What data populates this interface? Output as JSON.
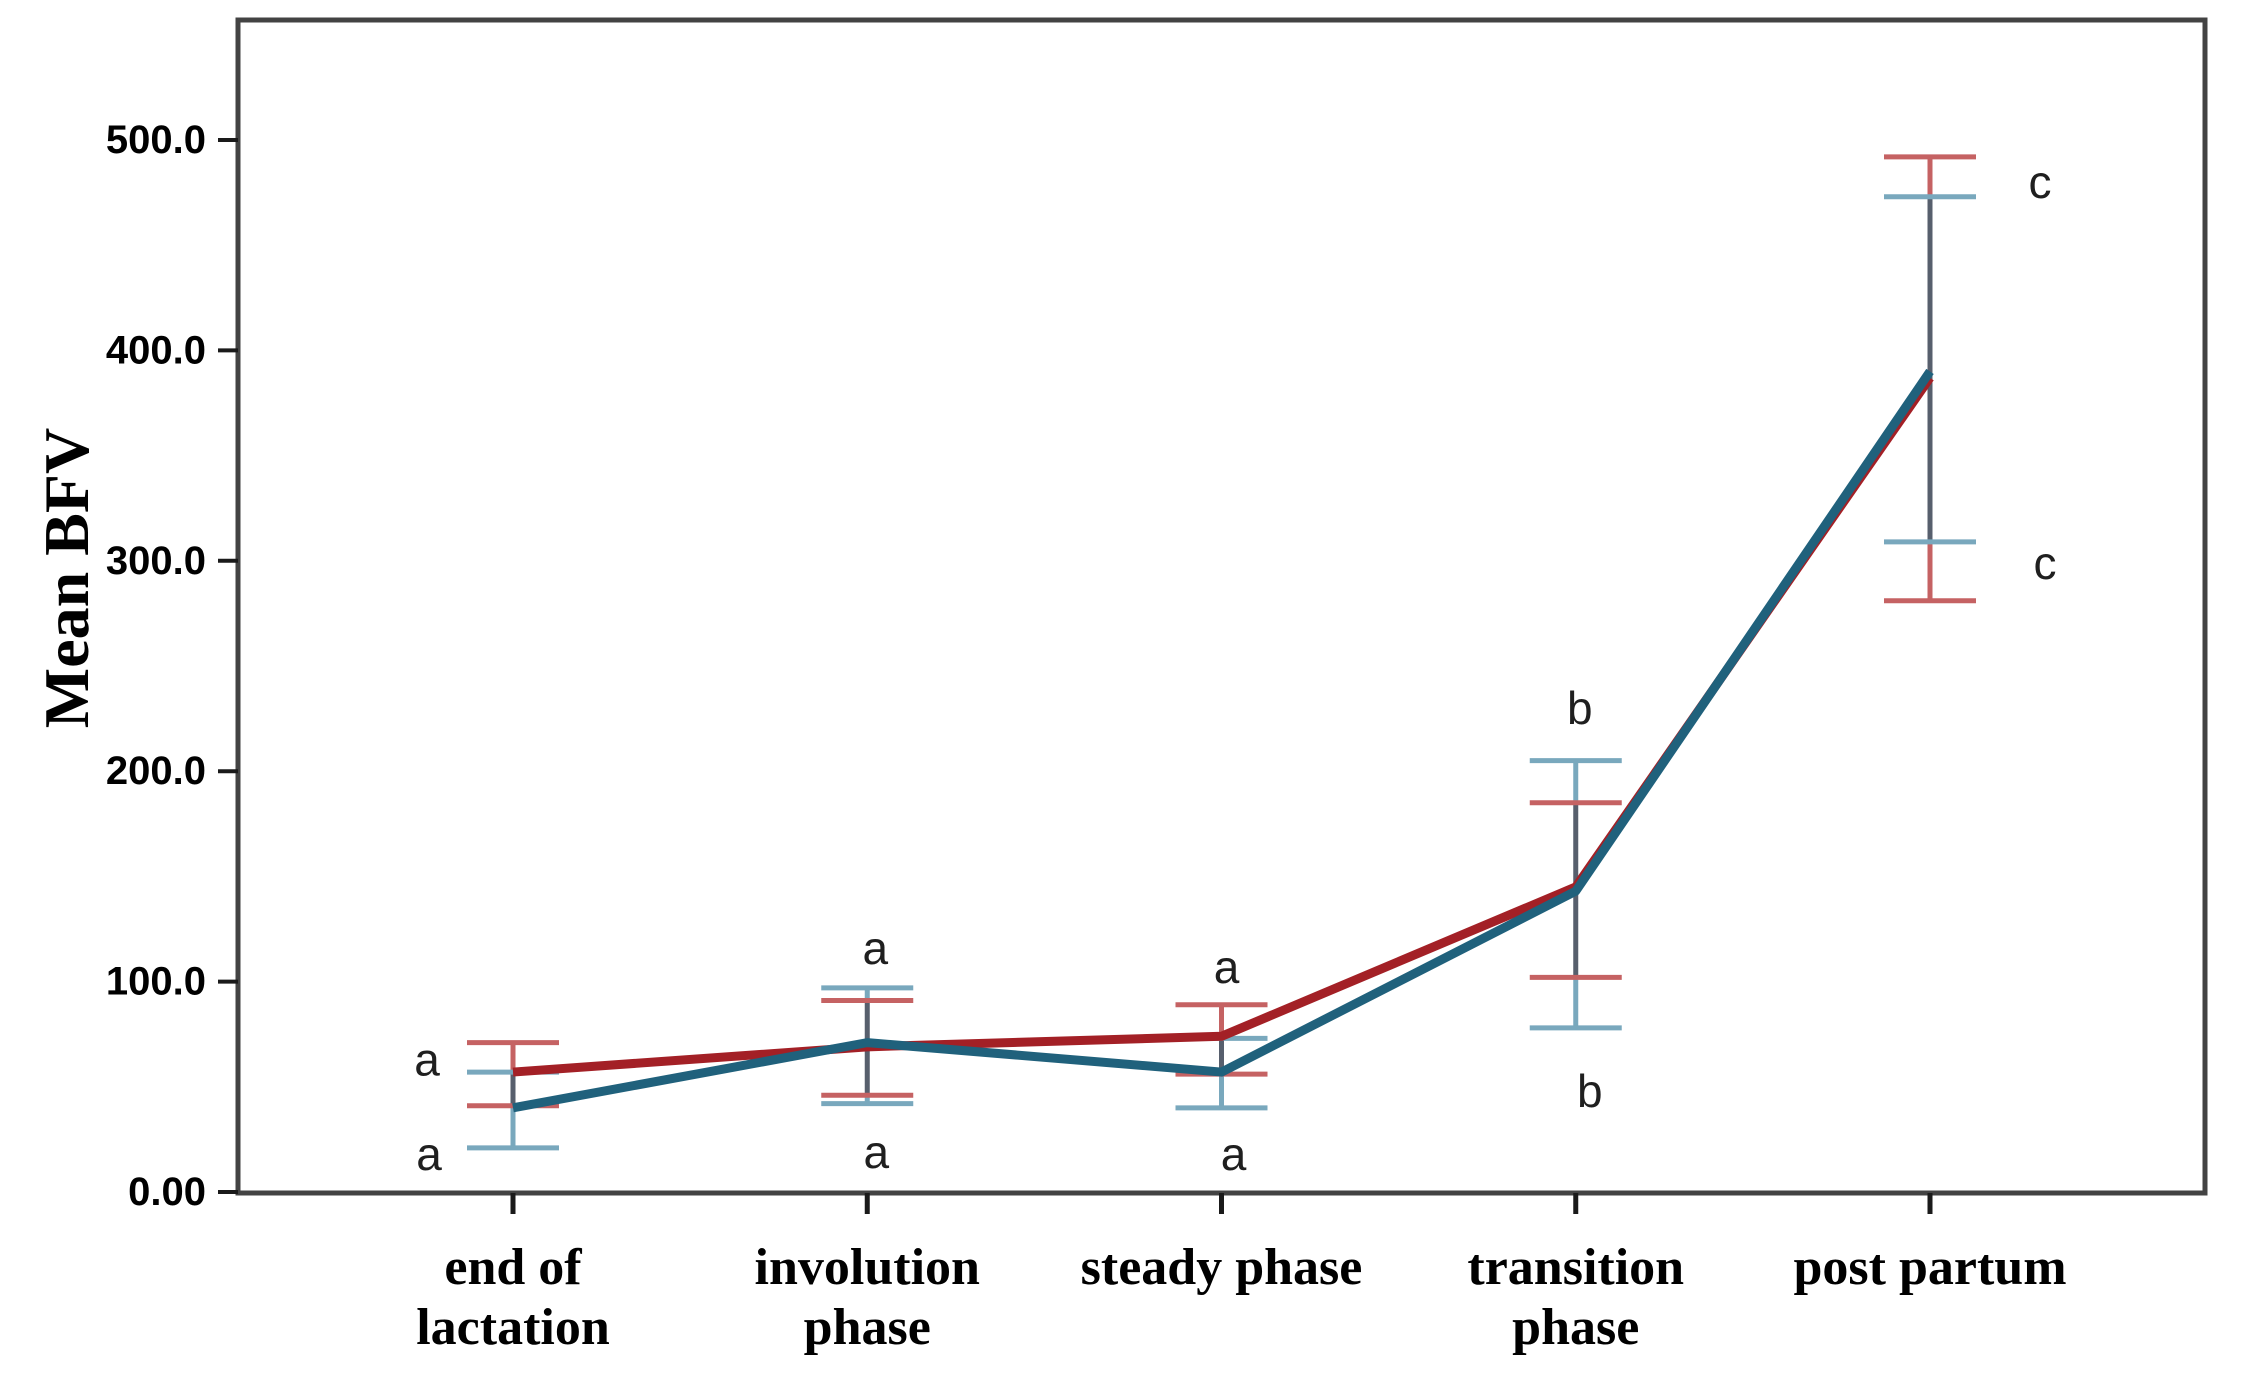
{
  "chart_data": {
    "type": "line",
    "title": "",
    "ylabel": "Mean BFV",
    "xlabel": "",
    "ylim": [
      0,
      557
    ],
    "grid": false,
    "legend": {
      "visible": false
    },
    "categories": [
      "end of lactation",
      "involution phase",
      "steady phase",
      "transition phase",
      "post partum"
    ],
    "category_label_lines": [
      [
        "end of",
        "lactation"
      ],
      [
        "involution",
        "phase"
      ],
      [
        "steady phase"
      ],
      [
        "transition",
        "phase"
      ],
      [
        "post partum"
      ]
    ],
    "y_ticks": [
      {
        "value": 0,
        "label": "0.00"
      },
      {
        "value": 100,
        "label": "100.0"
      },
      {
        "value": 200,
        "label": "200.0"
      },
      {
        "value": 300,
        "label": "300.0"
      },
      {
        "value": 400,
        "label": "400.0"
      },
      {
        "value": 500,
        "label": "500.0"
      }
    ],
    "series": [
      {
        "name": "red-series",
        "color": "#A32026",
        "error_color": "#C56263",
        "means": [
          57,
          69,
          74,
          145,
          387
        ],
        "ci_upper": [
          71,
          91,
          89,
          185,
          492
        ],
        "ci_lower": [
          41,
          46,
          56,
          102,
          281
        ]
      },
      {
        "name": "teal-series",
        "color": "#20617C",
        "error_color": "#79A8BD",
        "means": [
          40,
          71,
          57,
          143,
          390
        ],
        "ci_upper": [
          57,
          97,
          73,
          205,
          473
        ],
        "ci_lower": [
          21,
          42,
          40,
          78,
          309
        ]
      }
    ],
    "error_overlap_color": "#575F6D",
    "frame_color": "#434343",
    "tick_color": "#1a1a1a",
    "annotations": [
      {
        "text": "a",
        "cat": 0,
        "value": 63,
        "dx": -86
      },
      {
        "text": "a",
        "cat": 0,
        "value": 18,
        "dx": -84
      },
      {
        "text": "a",
        "cat": 1,
        "value": 116,
        "dx": 8
      },
      {
        "text": "a",
        "cat": 1,
        "value": 19,
        "dx": 9
      },
      {
        "text": "a",
        "cat": 2,
        "value": 107,
        "dx": 5
      },
      {
        "text": "a",
        "cat": 2,
        "value": 18,
        "dx": 12
      },
      {
        "text": "b",
        "cat": 3,
        "value": 230,
        "dx": 4
      },
      {
        "text": "b",
        "cat": 3,
        "value": 48,
        "dx": 14
      },
      {
        "text": "c",
        "cat": 4,
        "value": 480,
        "dx": 110
      },
      {
        "text": "c",
        "cat": 4,
        "value": 299,
        "dx": 115
      }
    ]
  }
}
